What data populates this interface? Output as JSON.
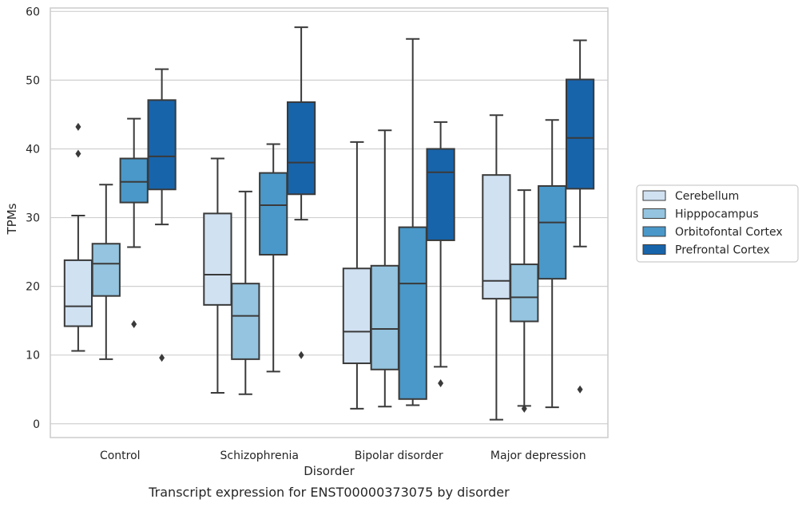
{
  "chart_data": {
    "type": "box",
    "title": "",
    "caption": "Transcript expression for ENST00000373075 by disorder",
    "xlabel": "Disorder",
    "ylabel": "TPMs",
    "ylim": [
      -2,
      60.5
    ],
    "yticks": [
      0,
      10,
      20,
      30,
      40,
      50,
      60
    ],
    "grid": "horizontal",
    "legend_position": "right",
    "categories": [
      "Control",
      "Schizophrenia",
      "Bipolar disorder",
      "Major depression"
    ],
    "series": [
      {
        "name": "Cerebellum",
        "color": "#d0e1f2",
        "boxes": [
          {
            "whisker_low": 10.6,
            "q1": 14.2,
            "median": 17.1,
            "q3": 23.8,
            "whisker_high": 30.3,
            "outliers": [
              39.3,
              43.2
            ]
          },
          {
            "whisker_low": 4.5,
            "q1": 17.3,
            "median": 21.7,
            "q3": 30.6,
            "whisker_high": 38.6,
            "outliers": []
          },
          {
            "whisker_low": 2.2,
            "q1": 8.8,
            "median": 13.4,
            "q3": 22.6,
            "whisker_high": 41.0,
            "outliers": []
          },
          {
            "whisker_low": 0.6,
            "q1": 18.2,
            "median": 20.8,
            "q3": 36.2,
            "whisker_high": 44.9,
            "outliers": []
          }
        ]
      },
      {
        "name": "Hipppocampus",
        "color": "#94c4df",
        "boxes": [
          {
            "whisker_low": 9.4,
            "q1": 18.6,
            "median": 23.3,
            "q3": 26.2,
            "whisker_high": 34.8,
            "outliers": []
          },
          {
            "whisker_low": 4.3,
            "q1": 9.4,
            "median": 15.7,
            "q3": 20.4,
            "whisker_high": 33.8,
            "outliers": []
          },
          {
            "whisker_low": 2.5,
            "q1": 7.9,
            "median": 13.8,
            "q3": 23.0,
            "whisker_high": 42.7,
            "outliers": []
          },
          {
            "whisker_low": 2.6,
            "q1": 14.9,
            "median": 18.4,
            "q3": 23.2,
            "whisker_high": 34.0,
            "outliers": [
              2.2
            ]
          }
        ]
      },
      {
        "name": "Orbitofontal Cortex",
        "color": "#4a98c9",
        "boxes": [
          {
            "whisker_low": 25.7,
            "q1": 32.2,
            "median": 35.2,
            "q3": 38.6,
            "whisker_high": 44.4,
            "outliers": [
              14.5
            ]
          },
          {
            "whisker_low": 7.6,
            "q1": 24.6,
            "median": 31.8,
            "q3": 36.5,
            "whisker_high": 40.7,
            "outliers": []
          },
          {
            "whisker_low": 2.7,
            "q1": 3.6,
            "median": 20.4,
            "q3": 28.6,
            "whisker_high": 56.0,
            "outliers": []
          },
          {
            "whisker_low": 2.4,
            "q1": 21.1,
            "median": 29.3,
            "q3": 34.6,
            "whisker_high": 44.2,
            "outliers": []
          }
        ]
      },
      {
        "name": "Prefrontal Cortex",
        "color": "#1764ab",
        "boxes": [
          {
            "whisker_low": 29.0,
            "q1": 34.1,
            "median": 38.9,
            "q3": 47.1,
            "whisker_high": 51.6,
            "outliers": [
              9.6
            ]
          },
          {
            "whisker_low": 29.7,
            "q1": 33.4,
            "median": 38.0,
            "q3": 46.8,
            "whisker_high": 57.7,
            "outliers": [
              10.0
            ]
          },
          {
            "whisker_low": 8.3,
            "q1": 26.7,
            "median": 36.6,
            "q3": 40.0,
            "whisker_high": 43.9,
            "outliers": [
              5.9
            ]
          },
          {
            "whisker_low": 25.8,
            "q1": 34.2,
            "median": 41.6,
            "q3": 50.1,
            "whisker_high": 55.8,
            "outliers": [
              5.0
            ]
          }
        ]
      }
    ]
  }
}
